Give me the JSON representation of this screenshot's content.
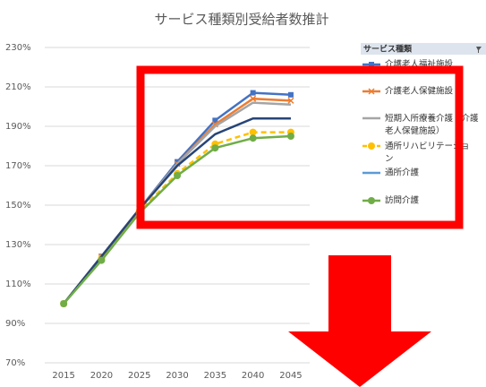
{
  "chart_data": {
    "type": "line",
    "title": "サービス種類別受給者数推計",
    "legend_title": "サービス種類",
    "categories": [
      "2015",
      "2020",
      "2025",
      "2030",
      "2035",
      "2040",
      "2045"
    ],
    "ylim": [
      70,
      230
    ],
    "yticks": [
      {
        "value": 70,
        "label": "70%"
      },
      {
        "value": 90,
        "label": "90%"
      },
      {
        "value": 110,
        "label": "110%"
      },
      {
        "value": 130,
        "label": "130%"
      },
      {
        "value": 150,
        "label": "150%"
      },
      {
        "value": 170,
        "label": "170%"
      },
      {
        "value": 190,
        "label": "190%"
      },
      {
        "value": 210,
        "label": "210%"
      },
      {
        "value": 230,
        "label": "230%"
      }
    ],
    "grid": true,
    "legend": "right",
    "series": [
      {
        "name": "介護老人福祉施設",
        "color": "#4472c4",
        "marker": "square",
        "values": [
          100,
          124,
          148,
          172,
          193,
          207,
          206
        ]
      },
      {
        "name": "介護老人保健施設",
        "color": "#ed7d31",
        "marker": "x",
        "values": [
          100,
          124,
          148,
          171,
          191,
          204,
          203
        ]
      },
      {
        "name": "短期入所療養介護（介護老人保健施設）",
        "color": "#a5a5a5",
        "marker": "none",
        "values": [
          100,
          124,
          148,
          171,
          190,
          202,
          201
        ]
      },
      {
        "name": "通所リハビリテーション",
        "color": "#ffc000",
        "marker": "circle",
        "dash": true,
        "values": [
          100,
          123,
          147,
          166,
          181,
          187,
          187
        ]
      },
      {
        "name": "通所介護",
        "color": "#264478",
        "legend_color": "#5b9bd5",
        "marker": "none",
        "values": [
          100,
          124,
          148,
          170,
          186,
          194,
          194
        ]
      },
      {
        "name": "訪問介護",
        "color": "#70ad47",
        "marker": "circle",
        "values": [
          100,
          122,
          146,
          165,
          179,
          184,
          185
        ]
      }
    ]
  }
}
